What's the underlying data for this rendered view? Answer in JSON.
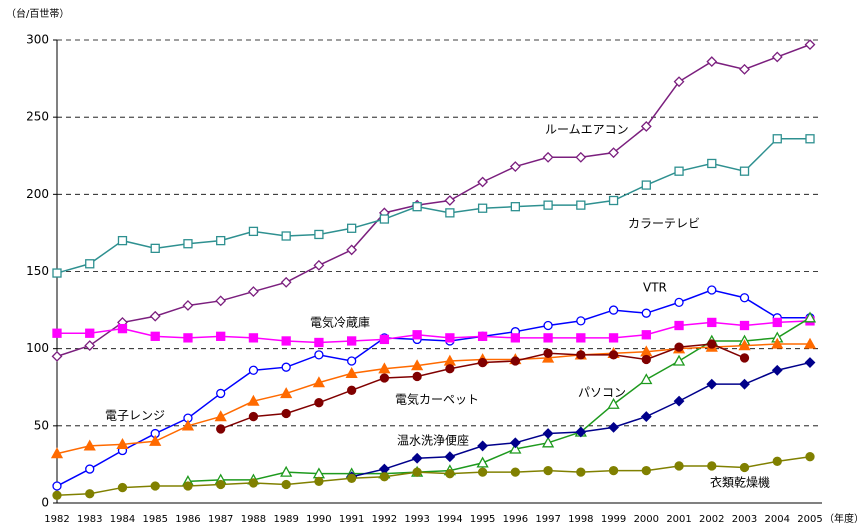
{
  "chart_data": {
    "type": "line",
    "y_unit_label": "（台/百世帯）",
    "x_unit_label": "（年度）",
    "categories": [
      "1982",
      "1983",
      "1984",
      "1985",
      "1986",
      "1987",
      "1988",
      "1989",
      "1990",
      "1991",
      "1992",
      "1993",
      "1994",
      "1995",
      "1996",
      "1997",
      "1998",
      "1999",
      "2000",
      "2001",
      "2002",
      "2003",
      "2004",
      "2005"
    ],
    "ylim": [
      0,
      300
    ],
    "yticks": [
      0,
      50,
      100,
      150,
      200,
      250,
      300
    ],
    "grid": true,
    "series": [
      {
        "name": "ルームエアコン",
        "color": "#7b1f7e",
        "marker": "diamond",
        "filled": false,
        "values": [
          95,
          102,
          117,
          121,
          128,
          131,
          137,
          143,
          154,
          164,
          188,
          193,
          196,
          208,
          218,
          224,
          224,
          227,
          244,
          273,
          286,
          281,
          289,
          297
        ]
      },
      {
        "name": "カラーテレビ",
        "color": "#2e9090",
        "marker": "square",
        "filled": false,
        "values": [
          149,
          155,
          170,
          165,
          168,
          170,
          176,
          173,
          174,
          178,
          184,
          192,
          188,
          191,
          192,
          193,
          193,
          196,
          206,
          215,
          220,
          215,
          236,
          236
        ]
      },
      {
        "name": "VTR",
        "color": "#0000ff",
        "marker": "circle",
        "filled": false,
        "values": [
          11,
          22,
          34,
          45,
          55,
          71,
          86,
          88,
          96,
          92,
          107,
          106,
          105,
          108,
          111,
          115,
          118,
          125,
          123,
          130,
          138,
          133,
          120,
          120
        ]
      },
      {
        "name": "電気冷蔵庫",
        "color": "#ff00ff",
        "marker": "square",
        "filled": true,
        "values": [
          110,
          110,
          113,
          108,
          107,
          108,
          107,
          105,
          104,
          105,
          106,
          109,
          107,
          108,
          107,
          107,
          107,
          107,
          109,
          115,
          117,
          115,
          117,
          118
        ]
      },
      {
        "name": "パソコン",
        "color": "#1e9a1e",
        "marker": "triangle",
        "filled": false,
        "values": [
          null,
          null,
          null,
          null,
          14,
          15,
          15,
          20,
          19,
          19,
          19,
          20,
          21,
          26,
          35,
          39,
          46,
          64,
          80,
          92,
          105,
          105,
          107,
          120
        ]
      },
      {
        "name": "電子レンジ",
        "color": "#ff6a00",
        "marker": "triangle",
        "filled": true,
        "values": [
          32,
          37,
          38,
          40,
          50,
          56,
          66,
          71,
          78,
          84,
          87,
          89,
          92,
          93,
          93,
          94,
          96,
          97,
          98,
          100,
          101,
          102,
          103,
          103
        ]
      },
      {
        "name": "電気カーペット",
        "color": "#800000",
        "marker": "circle",
        "filled": true,
        "values": [
          null,
          null,
          null,
          null,
          null,
          48,
          56,
          58,
          65,
          73,
          81,
          82,
          87,
          91,
          92,
          97,
          96,
          96,
          93,
          101,
          103,
          94,
          null,
          null
        ]
      },
      {
        "name": "温水洗浄便座",
        "color": "#00008b",
        "marker": "diamond",
        "filled": true,
        "values": [
          null,
          null,
          null,
          null,
          null,
          null,
          null,
          null,
          null,
          17,
          22,
          29,
          30,
          37,
          39,
          45,
          46,
          49,
          56,
          66,
          77,
          77,
          86,
          91
        ]
      },
      {
        "name": "衣類乾燥機",
        "color": "#808000",
        "marker": "circle",
        "filled": true,
        "values": [
          5,
          6,
          10,
          11,
          11,
          12,
          13,
          12,
          14,
          16,
          17,
          20,
          19,
          20,
          20,
          21,
          20,
          21,
          21,
          24,
          24,
          23,
          27,
          30
        ]
      }
    ]
  }
}
